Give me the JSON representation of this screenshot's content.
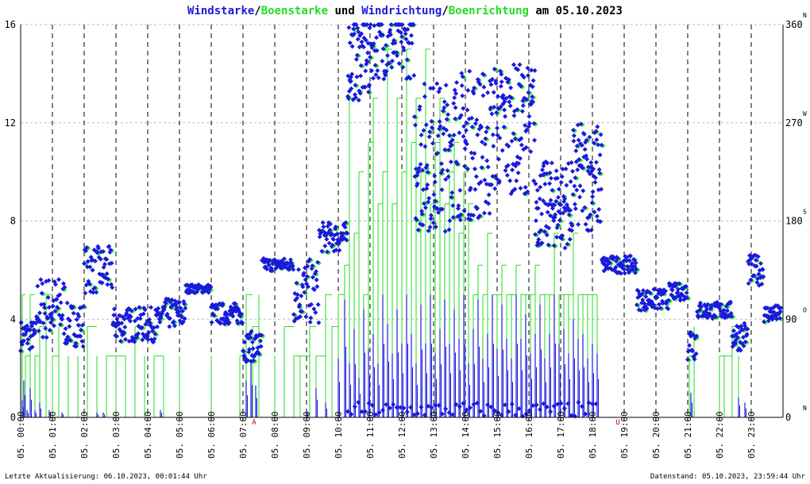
{
  "chart_data": {
    "type": "combo-wind",
    "title_parts": [
      {
        "text": "Windstarke",
        "color": "#1a1adb"
      },
      {
        "text": "/",
        "color": "#000000"
      },
      {
        "text": "Boenstarke",
        "color": "#22dd22"
      },
      {
        "text": " und ",
        "color": "#000000"
      },
      {
        "text": "Windrichtung",
        "color": "#1a1adb"
      },
      {
        "text": "/",
        "color": "#000000"
      },
      {
        "text": "Boenrichtung",
        "color": "#22dd22"
      },
      {
        "text": " am 05.10.2023",
        "color": "#000000"
      }
    ],
    "left_axis": {
      "range": [
        0,
        16
      ],
      "ticks": [
        "0",
        "4",
        "8",
        "12",
        "16"
      ],
      "tick_values": [
        0,
        4,
        8,
        12,
        16
      ]
    },
    "right_axis": {
      "range": [
        0,
        360
      ],
      "ticks": [
        "0",
        "90",
        "180",
        "270",
        "360"
      ],
      "tick_values": [
        0,
        90,
        180,
        270,
        360
      ],
      "compass": [
        "N",
        "O",
        "S",
        "W",
        "N"
      ]
    },
    "x_range_hours": [
      0,
      24
    ],
    "x_tick_labels": [
      "05. 00:00",
      "05. 01:00",
      "05. 02:00",
      "05. 03:00",
      "05. 04:00",
      "05. 05:00",
      "05. 06:00",
      "05. 07:00",
      "05. 08:00",
      "05. 09:00",
      "05. 10:00",
      "05. 11:00",
      "05. 12:00",
      "05. 13:00",
      "05. 14:00",
      "05. 15:00",
      "05. 16:00",
      "05. 17:00",
      "05. 18:00",
      "05. 19:00",
      "05. 20:00",
      "05. 21:00",
      "05. 22:00",
      "05. 23:00"
    ],
    "x_tick_hours": [
      0,
      1,
      2,
      3,
      4,
      5,
      6,
      7,
      8,
      9,
      10,
      11,
      12,
      13,
      14,
      15,
      16,
      17,
      18,
      19,
      20,
      21,
      22,
      23
    ],
    "sun_markers": [
      {
        "label": "A",
        "hour": 7.35
      },
      {
        "label": "U",
        "hour": 18.8
      }
    ],
    "gust_series": {
      "name": "Boenstarke",
      "color": "#22dd22",
      "hours": [
        0.05,
        0.15,
        0.3,
        0.45,
        0.6,
        0.8,
        1.0,
        1.2,
        1.5,
        1.8,
        2.1,
        2.4,
        2.7,
        3.0,
        3.3,
        3.6,
        3.9,
        4.2,
        4.5,
        5.0,
        6.0,
        6.9,
        7.1,
        7.3,
        7.5,
        8.0,
        8.3,
        8.6,
        8.8,
        9.1,
        9.3,
        9.6,
        9.8,
        10.0,
        10.2,
        10.35,
        10.5,
        10.65,
        10.8,
        10.95,
        11.1,
        11.25,
        11.4,
        11.55,
        11.7,
        11.85,
        12.0,
        12.15,
        12.3,
        12.45,
        12.6,
        12.75,
        12.9,
        13.05,
        13.2,
        13.35,
        13.5,
        13.65,
        13.8,
        13.95,
        14.1,
        14.25,
        14.4,
        14.55,
        14.7,
        14.85,
        15.0,
        15.15,
        15.3,
        15.45,
        15.6,
        15.75,
        15.9,
        16.05,
        16.2,
        16.35,
        16.5,
        16.65,
        16.8,
        16.95,
        17.1,
        17.25,
        17.4,
        17.55,
        17.7,
        17.85,
        18.0,
        18.15,
        21.05,
        21.2,
        22.0,
        22.15,
        22.4,
        22.6
      ],
      "values": [
        5,
        2.5,
        5,
        2.5,
        3.7,
        5,
        2.5,
        3.7,
        2.5,
        2.5,
        3.7,
        2.5,
        2.5,
        2.5,
        2.5,
        3.7,
        2.5,
        2.5,
        2.5,
        2.5,
        2.5,
        2.5,
        5,
        3.7,
        5,
        2.5,
        3.7,
        2.5,
        2.5,
        3.7,
        2.5,
        5,
        3.7,
        5,
        6.2,
        13,
        7.5,
        10,
        5,
        11.2,
        13,
        8.7,
        10,
        15,
        8.7,
        13,
        10,
        15,
        11.2,
        13,
        10,
        15,
        8.7,
        11.2,
        13,
        8.7,
        10,
        11.2,
        7.5,
        10,
        8.7,
        5,
        6.2,
        5,
        7.5,
        5,
        5,
        6.2,
        5,
        5,
        6.2,
        5,
        5,
        5,
        6.2,
        5,
        5,
        5,
        7.5,
        5,
        5,
        5,
        7.5,
        5,
        5,
        5,
        5,
        5,
        2.5,
        3.7,
        2.5,
        2.5,
        3.7,
        2.5
      ]
    },
    "wind_series": {
      "name": "Windstarke",
      "color": "#1a1adb",
      "hours": [
        0.05,
        0.1,
        0.2,
        0.3,
        0.45,
        0.6,
        0.9,
        1.3,
        2.4,
        2.6,
        4.4,
        7.1,
        7.25,
        7.4,
        9.0,
        9.3,
        9.6,
        10.0,
        10.2,
        10.35,
        10.5,
        10.65,
        10.8,
        10.95,
        11.1,
        11.25,
        11.4,
        11.55,
        11.7,
        11.85,
        12.0,
        12.15,
        12.3,
        12.45,
        12.6,
        12.75,
        12.9,
        13.05,
        13.2,
        13.35,
        13.5,
        13.65,
        13.8,
        13.95,
        14.1,
        14.25,
        14.4,
        14.55,
        14.7,
        14.85,
        15.0,
        15.15,
        15.3,
        15.45,
        15.6,
        15.75,
        15.9,
        16.05,
        16.2,
        16.35,
        16.5,
        16.65,
        16.8,
        16.95,
        17.1,
        17.25,
        17.4,
        17.55,
        17.7,
        17.85,
        18.0,
        18.15,
        21.1,
        22.6,
        22.8
      ],
      "values": [
        0.7,
        1.5,
        0.3,
        1.2,
        0.3,
        0.6,
        0.3,
        0.2,
        0.2,
        0.2,
        0.3,
        1.5,
        2.2,
        1.3,
        0.3,
        1.2,
        0.6,
        2.4,
        4.8,
        2.2,
        3.6,
        1.6,
        4.4,
        2.8,
        3.4,
        2.2,
        5,
        3.8,
        2.6,
        4.4,
        3,
        5,
        3.4,
        2.2,
        4.6,
        3,
        5,
        2.6,
        3.6,
        4.8,
        3,
        4.4,
        3.2,
        5,
        2.2,
        3.6,
        4.8,
        2.4,
        3.4,
        5,
        2.8,
        4.6,
        3.2,
        2.4,
        5,
        3.2,
        4.2,
        2.6,
        3.4,
        4.6,
        2.4,
        3.4,
        5,
        3,
        3.6,
        2.6,
        4,
        3.2,
        3.4,
        2.4,
        3,
        2.6,
        1,
        0.8,
        0.6
      ]
    },
    "wind_direction": {
      "name": "Windrichtung",
      "color": "#1a1adb",
      "unit": "deg",
      "segments": [
        {
          "h0": 0.0,
          "h1": 0.5,
          "mean": 75,
          "spread": 14
        },
        {
          "h0": 0.5,
          "h1": 1.4,
          "mean": 100,
          "spread": 30
        },
        {
          "h0": 1.4,
          "h1": 2.0,
          "mean": 85,
          "spread": 20
        },
        {
          "h0": 2.0,
          "h1": 2.9,
          "mean": 135,
          "spread": 22
        },
        {
          "h0": 2.9,
          "h1": 4.4,
          "mean": 85,
          "spread": 16
        },
        {
          "h0": 4.4,
          "h1": 5.2,
          "mean": 95,
          "spread": 14
        },
        {
          "h0": 5.2,
          "h1": 6.0,
          "mean": 118,
          "spread": 4
        },
        {
          "h0": 6.0,
          "h1": 7.0,
          "mean": 95,
          "spread": 10
        },
        {
          "h0": 7.0,
          "h1": 7.6,
          "mean": 65,
          "spread": 14
        },
        {
          "h0": 7.6,
          "h1": 8.6,
          "mean": 140,
          "spread": 6
        },
        {
          "h0": 8.6,
          "h1": 9.4,
          "mean": 115,
          "spread": 30
        },
        {
          "h0": 9.4,
          "h1": 10.3,
          "mean": 165,
          "spread": 14
        },
        {
          "h0": 10.3,
          "h1": 11.0,
          "mean": 330,
          "spread": 40
        },
        {
          "h0": 11.0,
          "h1": 12.4,
          "mean": 340,
          "spread": 30
        },
        {
          "h0": 12.4,
          "h1": 13.5,
          "mean": 240,
          "spread": 70
        },
        {
          "h0": 13.5,
          "h1": 14.8,
          "mean": 250,
          "spread": 70
        },
        {
          "h0": 14.8,
          "h1": 16.2,
          "mean": 265,
          "spread": 60
        },
        {
          "h0": 16.2,
          "h1": 17.4,
          "mean": 195,
          "spread": 40
        },
        {
          "h0": 17.4,
          "h1": 18.3,
          "mean": 220,
          "spread": 50
        },
        {
          "h0": 18.3,
          "h1": 19.4,
          "mean": 140,
          "spread": 8
        },
        {
          "h0": 19.4,
          "h1": 20.4,
          "mean": 108,
          "spread": 10
        },
        {
          "h0": 20.4,
          "h1": 21.0,
          "mean": 115,
          "spread": 8
        },
        {
          "h0": 21.0,
          "h1": 21.3,
          "mean": 70,
          "spread": 18
        },
        {
          "h0": 21.3,
          "h1": 22.4,
          "mean": 98,
          "spread": 8
        },
        {
          "h0": 22.4,
          "h1": 22.9,
          "mean": 75,
          "spread": 14
        },
        {
          "h0": 22.9,
          "h1": 23.4,
          "mean": 135,
          "spread": 14
        },
        {
          "h0": 23.4,
          "h1": 23.95,
          "mean": 95,
          "spread": 8
        }
      ]
    },
    "grid": true
  },
  "footer": {
    "left": "Letzte Aktualisierung: 06.10.2023, 00:01:44 Uhr",
    "right": "Datenstand: 05.10.2023, 23:59:44 Uhr"
  },
  "colors": {
    "wind": "#1a1adb",
    "gust": "#22dd22",
    "gust_direction": "#33ee33",
    "grid_h": "#bbbbbb",
    "grid_v": "#000000",
    "marker": "#cc0000"
  }
}
